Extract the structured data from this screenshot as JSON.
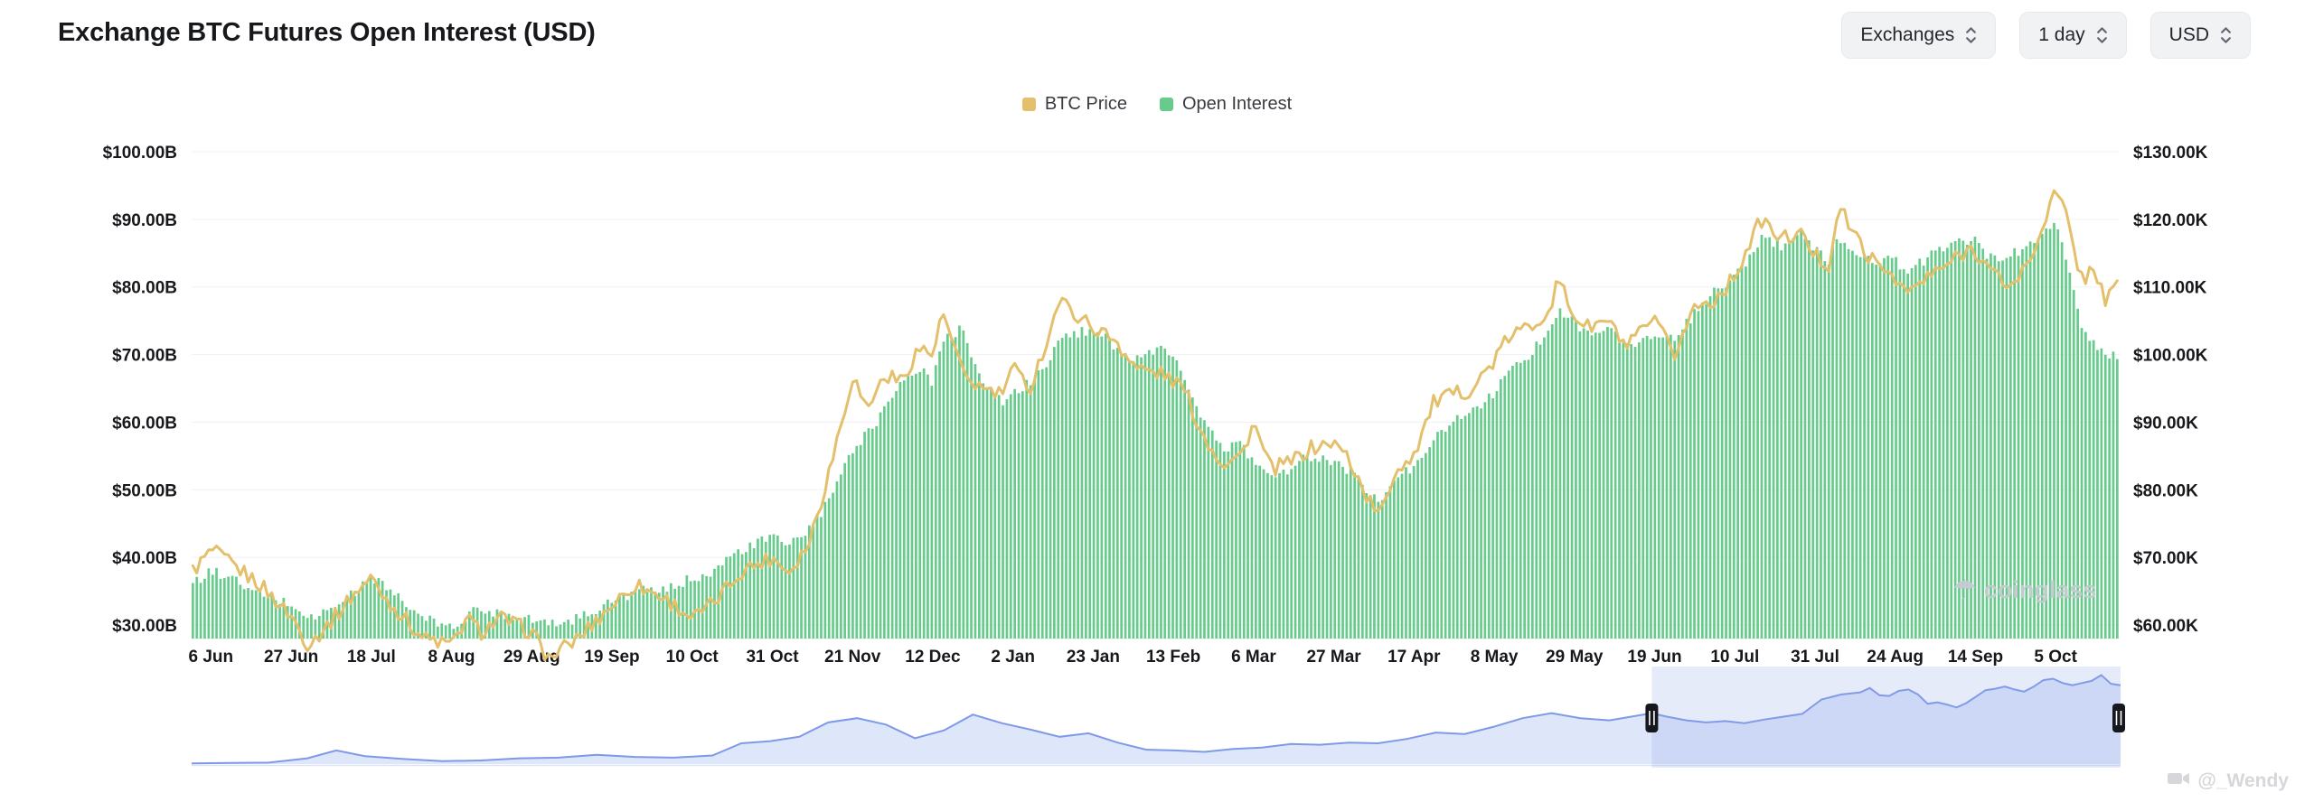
{
  "header": {
    "title": "Exchange BTC Futures Open Interest (USD)",
    "controls": [
      {
        "id": "exchanges",
        "label": "Exchanges"
      },
      {
        "id": "interval",
        "label": "1 day"
      },
      {
        "id": "currency",
        "label": "USD"
      }
    ]
  },
  "legend": [
    {
      "label": "BTC Price",
      "color": "#E4C06D"
    },
    {
      "label": "Open Interest",
      "color": "#66CB8B"
    }
  ],
  "watermarks": {
    "chart": "coinglass",
    "credit": "@_Wendy"
  },
  "chart_data": {
    "type": "mixed",
    "title": "Exchange BTC Futures Open Interest (USD)",
    "x_tick_labels": [
      "6 Jun",
      "27 Jun",
      "18 Jul",
      "8 Aug",
      "29 Aug",
      "19 Sep",
      "10 Oct",
      "31 Oct",
      "21 Nov",
      "12 Dec",
      "2 Jan",
      "23 Jan",
      "13 Feb",
      "6 Mar",
      "27 Mar",
      "17 Apr",
      "8 May",
      "29 May",
      "19 Jun",
      "10 Jul",
      "31 Jul",
      "24 Aug",
      "14 Sep",
      "5 Oct"
    ],
    "left_axis": {
      "series": "Open Interest",
      "unit": "USD billions",
      "min": 28,
      "max": 102,
      "tick_labels": [
        "$100.00B",
        "$90.00B",
        "$80.00B",
        "$70.00B",
        "$60.00B",
        "$50.00B",
        "$40.00B",
        "$30.00B"
      ]
    },
    "right_axis": {
      "series": "BTC Price",
      "unit": "USD thousands",
      "min": 58,
      "max": 132,
      "tick_labels": [
        "$130.00K",
        "$120.00K",
        "$110.00K",
        "$100.00K",
        "$90.00K",
        "$80.00K",
        "$70.00K",
        "$60.00K"
      ]
    },
    "grid": true,
    "legend_position": "top-center",
    "series": [
      {
        "name": "BTC Price",
        "type": "line",
        "axis": "right",
        "color": "#E4C06D",
        "points_t_value": [
          [
            0.0,
            68
          ],
          [
            0.01,
            71
          ],
          [
            0.02,
            69
          ],
          [
            0.035,
            66
          ],
          [
            0.052,
            61
          ],
          [
            0.06,
            57
          ],
          [
            0.07,
            60
          ],
          [
            0.085,
            65
          ],
          [
            0.093,
            67
          ],
          [
            0.1,
            64
          ],
          [
            0.11,
            61
          ],
          [
            0.12,
            58
          ],
          [
            0.135,
            57
          ],
          [
            0.142,
            61
          ],
          [
            0.15,
            59
          ],
          [
            0.16,
            61
          ],
          [
            0.176,
            59
          ],
          [
            0.185,
            55
          ],
          [
            0.2,
            58
          ],
          [
            0.218,
            63
          ],
          [
            0.23,
            66
          ],
          [
            0.245,
            64
          ],
          [
            0.26,
            61
          ],
          [
            0.27,
            63
          ],
          [
            0.285,
            68
          ],
          [
            0.301,
            70
          ],
          [
            0.31,
            68
          ],
          [
            0.32,
            72
          ],
          [
            0.33,
            82
          ],
          [
            0.343,
            97
          ],
          [
            0.35,
            92
          ],
          [
            0.36,
            97
          ],
          [
            0.368,
            96
          ],
          [
            0.377,
            101
          ],
          [
            0.384,
            100
          ],
          [
            0.39,
            106
          ],
          [
            0.4,
            97
          ],
          [
            0.41,
            95
          ],
          [
            0.42,
            94
          ],
          [
            0.426,
            98
          ],
          [
            0.435,
            95
          ],
          [
            0.445,
            103
          ],
          [
            0.45,
            108
          ],
          [
            0.468,
            104
          ],
          [
            0.48,
            102
          ],
          [
            0.49,
            98
          ],
          [
            0.505,
            97
          ],
          [
            0.515,
            95
          ],
          [
            0.525,
            88
          ],
          [
            0.535,
            84
          ],
          [
            0.545,
            85
          ],
          [
            0.551,
            90
          ],
          [
            0.56,
            83
          ],
          [
            0.57,
            84
          ],
          [
            0.58,
            86
          ],
          [
            0.592,
            87
          ],
          [
            0.6,
            85
          ],
          [
            0.61,
            79
          ],
          [
            0.617,
            76
          ],
          [
            0.625,
            83
          ],
          [
            0.634,
            85
          ],
          [
            0.645,
            93
          ],
          [
            0.655,
            94
          ],
          [
            0.665,
            95
          ],
          [
            0.676,
            99
          ],
          [
            0.685,
            103
          ],
          [
            0.695,
            104
          ],
          [
            0.705,
            107
          ],
          [
            0.71,
            111
          ],
          [
            0.717,
            106
          ],
          [
            0.725,
            104
          ],
          [
            0.735,
            105
          ],
          [
            0.745,
            101
          ],
          [
            0.759,
            105
          ],
          [
            0.77,
            100
          ],
          [
            0.78,
            107
          ],
          [
            0.79,
            108
          ],
          [
            0.8,
            111
          ],
          [
            0.81,
            117
          ],
          [
            0.815,
            120
          ],
          [
            0.825,
            117
          ],
          [
            0.835,
            118
          ],
          [
            0.842,
            115
          ],
          [
            0.85,
            113
          ],
          [
            0.855,
            122
          ],
          [
            0.865,
            117
          ],
          [
            0.875,
            113
          ],
          [
            0.884,
            112
          ],
          [
            0.89,
            109
          ],
          [
            0.9,
            111
          ],
          [
            0.91,
            113
          ],
          [
            0.925,
            116
          ],
          [
            0.935,
            112
          ],
          [
            0.945,
            110
          ],
          [
            0.955,
            114
          ],
          [
            0.962,
            120
          ],
          [
            0.968,
            124
          ],
          [
            0.972,
            122
          ],
          [
            0.978,
            115
          ],
          [
            0.982,
            111
          ],
          [
            0.988,
            113
          ],
          [
            0.994,
            108
          ],
          [
            1.0,
            110
          ]
        ]
      },
      {
        "name": "Open Interest",
        "type": "bar",
        "axis": "left",
        "color": "#66CB8B",
        "points_t_value": [
          [
            0.0,
            36
          ],
          [
            0.01,
            38
          ],
          [
            0.02,
            37
          ],
          [
            0.03,
            35
          ],
          [
            0.052,
            33
          ],
          [
            0.06,
            31
          ],
          [
            0.07,
            32
          ],
          [
            0.085,
            35
          ],
          [
            0.093,
            37
          ],
          [
            0.1,
            36
          ],
          [
            0.11,
            33
          ],
          [
            0.12,
            31
          ],
          [
            0.135,
            29.5
          ],
          [
            0.145,
            32
          ],
          [
            0.155,
            32
          ],
          [
            0.165,
            31.5
          ],
          [
            0.176,
            31
          ],
          [
            0.185,
            30
          ],
          [
            0.2,
            31
          ],
          [
            0.218,
            33.5
          ],
          [
            0.23,
            35
          ],
          [
            0.245,
            35
          ],
          [
            0.26,
            37
          ],
          [
            0.27,
            38
          ],
          [
            0.285,
            41
          ],
          [
            0.301,
            43
          ],
          [
            0.31,
            42
          ],
          [
            0.32,
            44
          ],
          [
            0.33,
            48
          ],
          [
            0.343,
            56
          ],
          [
            0.355,
            60
          ],
          [
            0.365,
            65
          ],
          [
            0.377,
            68
          ],
          [
            0.384,
            66
          ],
          [
            0.39,
            72
          ],
          [
            0.4,
            74
          ],
          [
            0.41,
            66
          ],
          [
            0.42,
            63
          ],
          [
            0.426,
            64
          ],
          [
            0.44,
            67
          ],
          [
            0.45,
            72
          ],
          [
            0.468,
            74
          ],
          [
            0.48,
            71
          ],
          [
            0.49,
            69
          ],
          [
            0.505,
            71
          ],
          [
            0.515,
            67
          ],
          [
            0.525,
            60
          ],
          [
            0.535,
            56
          ],
          [
            0.545,
            57
          ],
          [
            0.551,
            54
          ],
          [
            0.56,
            52
          ],
          [
            0.57,
            53
          ],
          [
            0.58,
            55
          ],
          [
            0.592,
            54
          ],
          [
            0.6,
            53
          ],
          [
            0.61,
            50
          ],
          [
            0.617,
            48
          ],
          [
            0.625,
            52
          ],
          [
            0.634,
            53
          ],
          [
            0.645,
            58
          ],
          [
            0.655,
            60
          ],
          [
            0.665,
            62
          ],
          [
            0.676,
            64
          ],
          [
            0.685,
            68
          ],
          [
            0.695,
            70
          ],
          [
            0.705,
            74
          ],
          [
            0.71,
            77
          ],
          [
            0.717,
            75
          ],
          [
            0.725,
            73
          ],
          [
            0.735,
            74
          ],
          [
            0.745,
            71
          ],
          [
            0.759,
            73
          ],
          [
            0.77,
            72
          ],
          [
            0.78,
            76
          ],
          [
            0.79,
            79
          ],
          [
            0.8,
            81
          ],
          [
            0.81,
            85
          ],
          [
            0.815,
            87
          ],
          [
            0.825,
            86
          ],
          [
            0.835,
            88
          ],
          [
            0.842,
            86
          ],
          [
            0.85,
            84
          ],
          [
            0.855,
            87
          ],
          [
            0.865,
            85
          ],
          [
            0.875,
            84
          ],
          [
            0.884,
            84
          ],
          [
            0.89,
            82
          ],
          [
            0.9,
            84
          ],
          [
            0.91,
            86
          ],
          [
            0.925,
            87
          ],
          [
            0.935,
            84
          ],
          [
            0.945,
            85
          ],
          [
            0.955,
            86
          ],
          [
            0.962,
            88
          ],
          [
            0.968,
            90
          ],
          [
            0.972,
            86
          ],
          [
            0.978,
            78
          ],
          [
            0.982,
            73
          ],
          [
            0.988,
            72
          ],
          [
            0.994,
            70
          ],
          [
            1.0,
            70
          ]
        ]
      }
    ],
    "navigator": {
      "line_color": "#7E99E8",
      "fill_color": "#DEE7FA",
      "selection_color": "#8CA3E6",
      "selection_range": [
        0.757,
        1.0
      ],
      "points_t_value": [
        [
          0.0,
          1
        ],
        [
          0.04,
          2
        ],
        [
          0.06,
          8
        ],
        [
          0.075,
          19
        ],
        [
          0.09,
          11
        ],
        [
          0.11,
          7
        ],
        [
          0.13,
          4
        ],
        [
          0.15,
          5
        ],
        [
          0.17,
          8
        ],
        [
          0.19,
          9
        ],
        [
          0.21,
          13
        ],
        [
          0.23,
          10
        ],
        [
          0.25,
          9
        ],
        [
          0.27,
          12
        ],
        [
          0.285,
          29
        ],
        [
          0.3,
          32
        ],
        [
          0.315,
          38
        ],
        [
          0.33,
          58
        ],
        [
          0.345,
          64
        ],
        [
          0.36,
          55
        ],
        [
          0.375,
          36
        ],
        [
          0.39,
          47
        ],
        [
          0.405,
          69
        ],
        [
          0.42,
          57
        ],
        [
          0.435,
          48
        ],
        [
          0.45,
          38
        ],
        [
          0.465,
          43
        ],
        [
          0.48,
          30
        ],
        [
          0.495,
          20
        ],
        [
          0.51,
          19
        ],
        [
          0.525,
          17
        ],
        [
          0.54,
          21
        ],
        [
          0.555,
          23
        ],
        [
          0.57,
          28
        ],
        [
          0.585,
          27
        ],
        [
          0.6,
          30
        ],
        [
          0.615,
          29
        ],
        [
          0.63,
          35
        ],
        [
          0.645,
          44
        ],
        [
          0.66,
          42
        ],
        [
          0.675,
          52
        ],
        [
          0.69,
          64
        ],
        [
          0.705,
          71
        ],
        [
          0.72,
          64
        ],
        [
          0.735,
          61
        ],
        [
          0.757,
          71
        ],
        [
          0.765,
          66
        ],
        [
          0.775,
          61
        ],
        [
          0.785,
          58
        ],
        [
          0.795,
          60
        ],
        [
          0.805,
          57
        ],
        [
          0.815,
          62
        ],
        [
          0.825,
          66
        ],
        [
          0.835,
          70
        ],
        [
          0.845,
          90
        ],
        [
          0.855,
          97
        ],
        [
          0.865,
          100
        ],
        [
          0.87,
          106
        ],
        [
          0.875,
          96
        ],
        [
          0.88,
          95
        ],
        [
          0.885,
          102
        ],
        [
          0.89,
          104
        ],
        [
          0.895,
          97
        ],
        [
          0.9,
          84
        ],
        [
          0.905,
          86
        ],
        [
          0.91,
          83
        ],
        [
          0.915,
          79
        ],
        [
          0.92,
          85
        ],
        [
          0.925,
          94
        ],
        [
          0.93,
          103
        ],
        [
          0.935,
          105
        ],
        [
          0.94,
          108
        ],
        [
          0.945,
          104
        ],
        [
          0.95,
          101
        ],
        [
          0.955,
          108
        ],
        [
          0.96,
          117
        ],
        [
          0.965,
          119
        ],
        [
          0.97,
          113
        ],
        [
          0.975,
          110
        ],
        [
          0.98,
          113
        ],
        [
          0.985,
          116
        ],
        [
          0.99,
          124
        ],
        [
          0.995,
          112
        ],
        [
          1.0,
          110
        ]
      ]
    }
  }
}
